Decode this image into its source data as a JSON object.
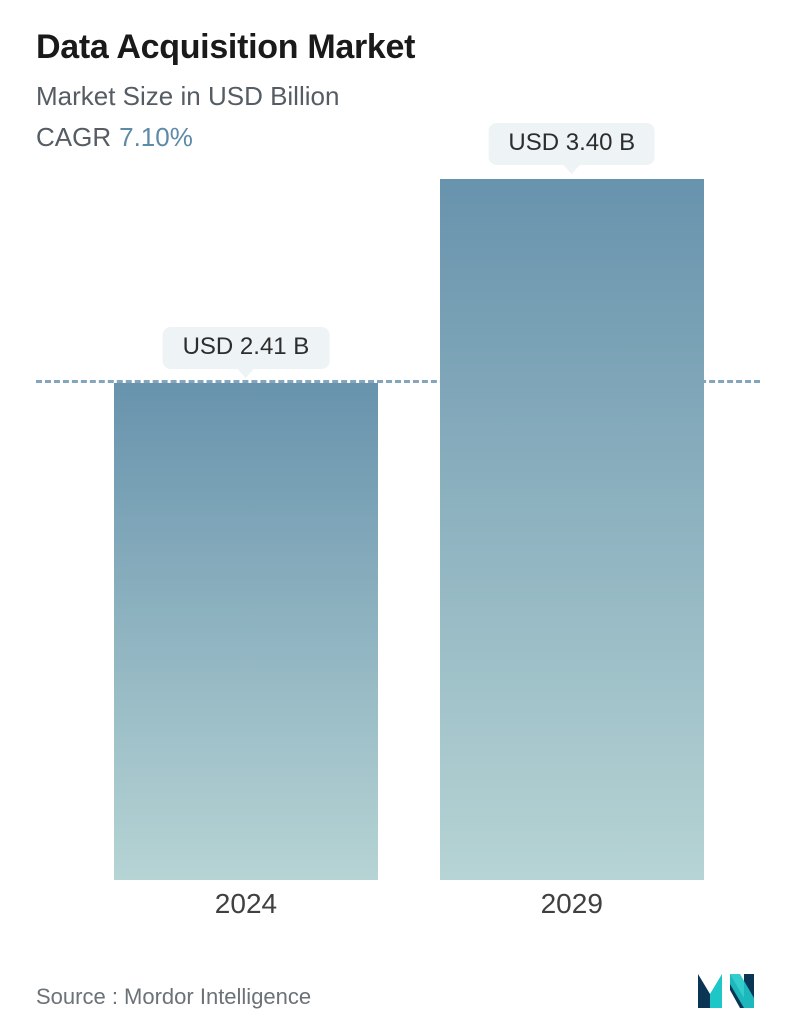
{
  "header": {
    "title": "Data Acquisition Market",
    "subtitle": "Market Size in USD Billion",
    "cagr_label": "CAGR",
    "cagr_value": "7.10%"
  },
  "chart": {
    "type": "bar",
    "background_color": "#ffffff",
    "bar_gradient_top": "#6893ad",
    "bar_gradient_bottom": "#b6d4d4",
    "reference_line_color": "#6f97b2",
    "reference_line_dash": "dashed",
    "reference_line_value": 2.41,
    "pill_bg": "#eef3f6",
    "pill_text_color": "#2d2d2d",
    "x_label_color": "#404040",
    "x_label_fontsize": 28,
    "pill_fontsize": 24,
    "y_max": 3.4,
    "bar_width_pct": 36.5,
    "bars": [
      {
        "x_label": "2024",
        "value": 2.41,
        "value_label": "USD 2.41 B",
        "center_pct": 29.0
      },
      {
        "x_label": "2029",
        "value": 3.4,
        "value_label": "USD 3.40 B",
        "center_pct": 74.0
      }
    ]
  },
  "footer": {
    "source_text": "Source :  Mordor Intelligence",
    "logo_colors": {
      "dark": "#0a3554",
      "teal": "#1ec7c7"
    }
  }
}
